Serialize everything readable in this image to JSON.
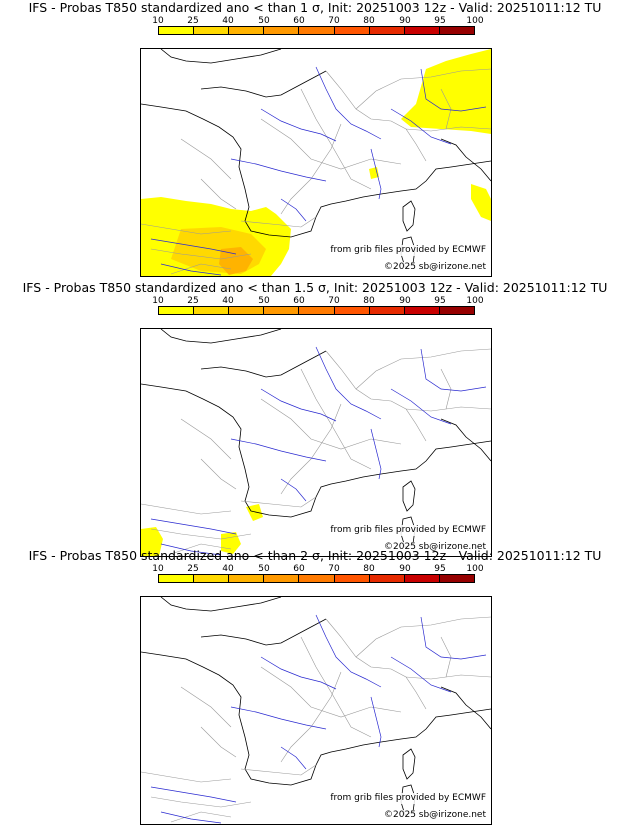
{
  "colorbar": {
    "ticks": [
      "10",
      "25",
      "40",
      "50",
      "60",
      "70",
      "80",
      "90",
      "95",
      "100"
    ],
    "colors": [
      "#ffff00",
      "#ffd900",
      "#ffb300",
      "#ff9900",
      "#ff7a00",
      "#ff5500",
      "#e62a00",
      "#c80000",
      "#960000",
      "#5a0000"
    ]
  },
  "map_colors": {
    "land_stroke": "#9a9a9a",
    "river": "#2a2ad0",
    "coast": "#000000"
  },
  "credits": {
    "source": "from grib files provided by ECMWF",
    "copyright": "©2025 sb@irizone.net"
  },
  "panels": [
    {
      "title": "IFS - Probas T850  standardized ano < than 1 σ, Init: 20251003 12z - Valid: 20251011:12 TU",
      "threshold": "1 σ"
    },
    {
      "title": "IFS - Probas T850  standardized ano < than 1.5 σ, Init: 20251003 12z - Valid: 20251011:12 TU",
      "threshold": "1.5 σ"
    },
    {
      "title": "IFS - Probas T850  standardized ano < than 2 σ, Init: 20251003 12z - Valid: 20251011:12 TU",
      "threshold": "2 σ"
    }
  ]
}
